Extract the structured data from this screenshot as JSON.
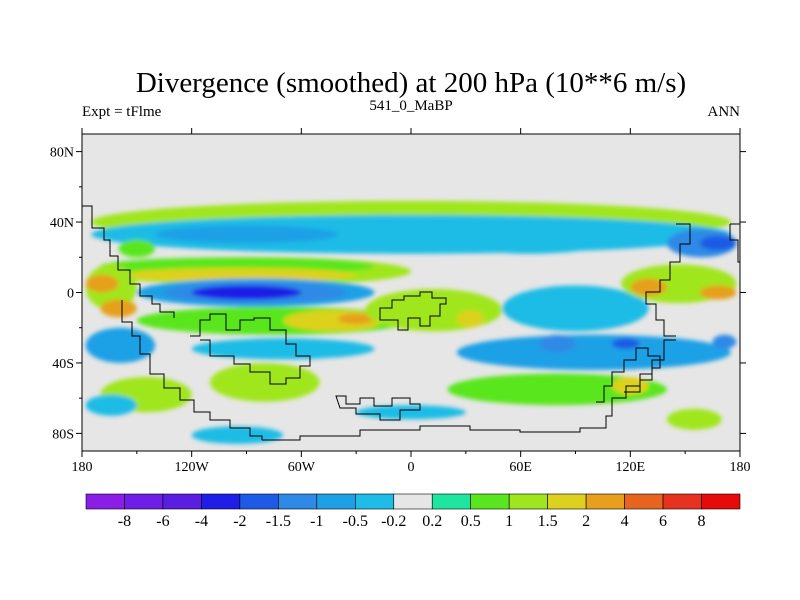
{
  "chart_data": {
    "type": "heatmap",
    "title": "Divergence (smoothed) at 200 hPa (10**6 m/s)",
    "left_label": "Expt = tFlme",
    "center_label": "541_0_MaBP",
    "right_label": "ANN",
    "x_range": [
      -180,
      180
    ],
    "y_range": [
      -90,
      90
    ],
    "x_ticks": [
      -180,
      -120,
      -60,
      0,
      60,
      120,
      180
    ],
    "x_tick_labels": [
      "180",
      "120W",
      "60W",
      "0",
      "60E",
      "120E",
      "180"
    ],
    "y_ticks": [
      80,
      40,
      0,
      -40,
      -80
    ],
    "y_tick_labels": [
      "80N",
      "40N",
      "0",
      "40S",
      "80S"
    ],
    "colorbar": {
      "levels": [
        "-8",
        "-6",
        "-4",
        "-2",
        "-1.5",
        "-1",
        "-0.5",
        "-0.2",
        "0.2",
        "0.5",
        "1",
        "1.5",
        "2",
        "4",
        "6",
        "8"
      ],
      "colors": [
        "#8b1ee6",
        "#6e1ee6",
        "#5a1ee0",
        "#1e1ee6",
        "#1e5ae6",
        "#2e8ae6",
        "#1ea0e6",
        "#1ebce6",
        "#e6e6e6",
        "#1ee6a0",
        "#5ae61e",
        "#a0e61e",
        "#dcd21e",
        "#e6a01e",
        "#e6641e",
        "#e6321e",
        "#e60a0a"
      ]
    },
    "regions": [
      {
        "value": 1.0,
        "lon": [
          -175,
          175
        ],
        "lat": [
          28,
          52
        ]
      },
      {
        "value": -0.5,
        "lon": [
          -175,
          175
        ],
        "lat": [
          22,
          44
        ]
      },
      {
        "value": 0.5,
        "lon": [
          -160,
          -140
        ],
        "lat": [
          20,
          30
        ]
      },
      {
        "value": -1.0,
        "lon": [
          -140,
          -40
        ],
        "lat": [
          28,
          38
        ]
      },
      {
        "value": -0.5,
        "lon": [
          20,
          110
        ],
        "lat": [
          22,
          38
        ]
      },
      {
        "value": -1.5,
        "lon": [
          140,
          178
        ],
        "lat": [
          20,
          36
        ]
      },
      {
        "value": -2.0,
        "lon": [
          158,
          178
        ],
        "lat": [
          24,
          32
        ]
      },
      {
        "value": 1.0,
        "lon": [
          -170,
          0
        ],
        "lat": [
          4,
          20
        ]
      },
      {
        "value": 0.5,
        "lon": [
          -170,
          -20
        ],
        "lat": [
          10,
          20
        ]
      },
      {
        "value": 1.5,
        "lon": [
          -160,
          -30
        ],
        "lat": [
          6,
          14
        ]
      },
      {
        "value": 1.0,
        "lon": [
          -178,
          -150
        ],
        "lat": [
          -10,
          16
        ]
      },
      {
        "value": 2.0,
        "lon": [
          -178,
          -160
        ],
        "lat": [
          0,
          10
        ]
      },
      {
        "value": 2.0,
        "lon": [
          -170,
          -150
        ],
        "lat": [
          -14,
          -4
        ]
      },
      {
        "value": -1.0,
        "lon": [
          -150,
          -20
        ],
        "lat": [
          -8,
          8
        ]
      },
      {
        "value": -1.5,
        "lon": [
          -135,
          -35
        ],
        "lat": [
          -6,
          6
        ]
      },
      {
        "value": -4.0,
        "lon": [
          -120,
          -60
        ],
        "lat": [
          -4,
          4
        ]
      },
      {
        "value": 0.5,
        "lon": [
          -150,
          0
        ],
        "lat": [
          -24,
          -8
        ]
      },
      {
        "value": 1.5,
        "lon": [
          -70,
          -15
        ],
        "lat": [
          -22,
          -10
        ]
      },
      {
        "value": 2.0,
        "lon": [
          -40,
          -20
        ],
        "lat": [
          -18,
          -12
        ]
      },
      {
        "value": 1.0,
        "lon": [
          -25,
          50
        ],
        "lat": [
          -22,
          2
        ]
      },
      {
        "value": 1.5,
        "lon": [
          25,
          40
        ],
        "lat": [
          -20,
          -10
        ]
      },
      {
        "value": -0.5,
        "lon": [
          50,
          130
        ],
        "lat": [
          -22,
          4
        ]
      },
      {
        "value": 1.0,
        "lon": [
          115,
          178
        ],
        "lat": [
          -6,
          16
        ]
      },
      {
        "value": 2.0,
        "lon": [
          120,
          140
        ],
        "lat": [
          -2,
          8
        ]
      },
      {
        "value": 2.0,
        "lon": [
          158,
          178
        ],
        "lat": [
          -4,
          4
        ]
      },
      {
        "value": -1.0,
        "lon": [
          -178,
          -140
        ],
        "lat": [
          -40,
          -20
        ]
      },
      {
        "value": -0.5,
        "lon": [
          -120,
          -20
        ],
        "lat": [
          -38,
          -26
        ]
      },
      {
        "value": -1.0,
        "lon": [
          25,
          175
        ],
        "lat": [
          -44,
          -24
        ]
      },
      {
        "value": -1.5,
        "lon": [
          70,
          90
        ],
        "lat": [
          -34,
          -24
        ]
      },
      {
        "value": -2.0,
        "lon": [
          110,
          125
        ],
        "lat": [
          -32,
          -26
        ]
      },
      {
        "value": -1.5,
        "lon": [
          165,
          178
        ],
        "lat": [
          -32,
          -24
        ]
      },
      {
        "value": 1.0,
        "lon": [
          -110,
          -50
        ],
        "lat": [
          -62,
          -40
        ]
      },
      {
        "value": 1.0,
        "lon": [
          -170,
          -120
        ],
        "lat": [
          -68,
          -48
        ]
      },
      {
        "value": 0.5,
        "lon": [
          20,
          140
        ],
        "lat": [
          -64,
          -46
        ]
      },
      {
        "value": 1.5,
        "lon": [
          110,
          130
        ],
        "lat": [
          -58,
          -48
        ]
      },
      {
        "value": -0.5,
        "lon": [
          -178,
          -150
        ],
        "lat": [
          -70,
          -58
        ]
      },
      {
        "value": -0.5,
        "lon": [
          -30,
          30
        ],
        "lat": [
          -72,
          -64
        ]
      },
      {
        "value": -0.5,
        "lon": [
          -120,
          -70
        ],
        "lat": [
          -86,
          -76
        ]
      },
      {
        "value": 1.0,
        "lon": [
          140,
          170
        ],
        "lat": [
          -78,
          -66
        ]
      }
    ]
  }
}
